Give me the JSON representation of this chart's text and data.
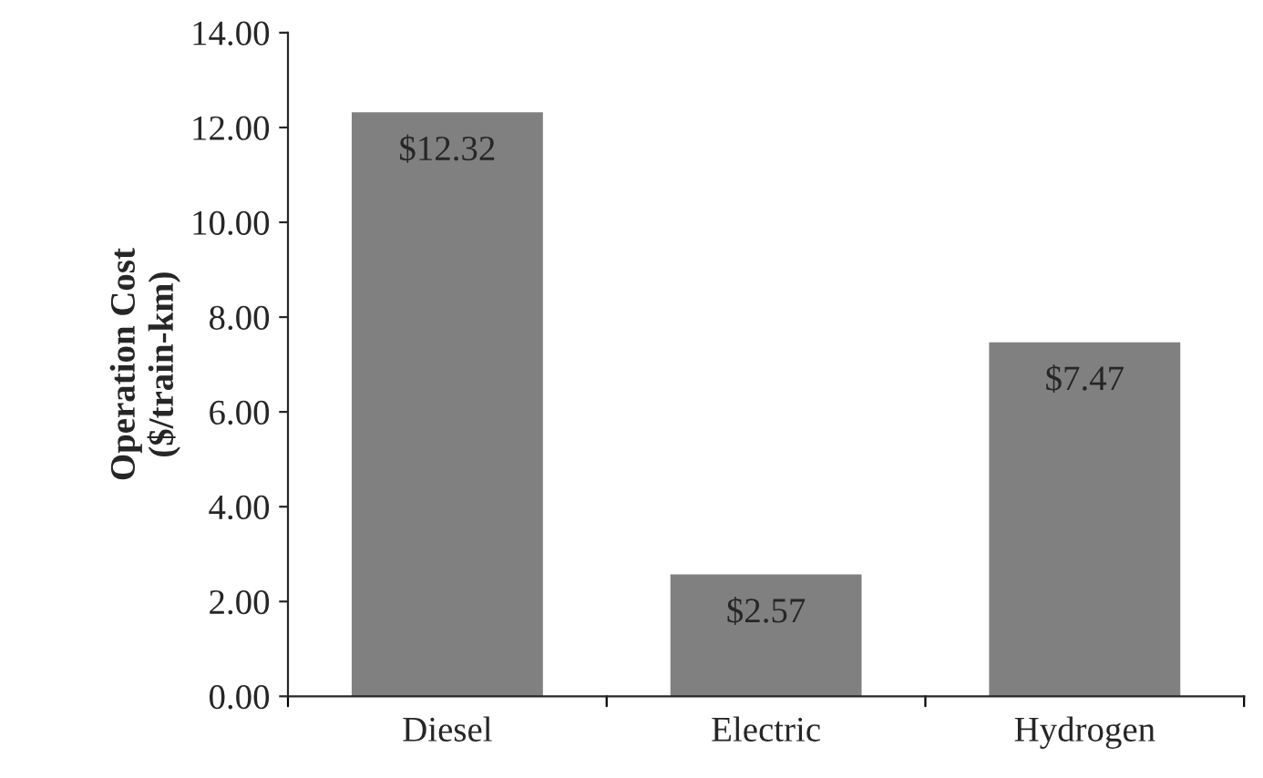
{
  "chart_data": {
    "type": "bar",
    "ylabel": "Operation Cost\n($/train-km)",
    "categories": [
      "Diesel",
      "Electric",
      "Hydrogen"
    ],
    "values": [
      12.32,
      2.57,
      7.47
    ],
    "color": "#808080",
    "value_labels": [
      "$12.32",
      "$2.57",
      "$7.47"
    ],
    "ylim": [
      0,
      14
    ],
    "yticks": [
      {
        "value": 0,
        "label": "0.00"
      },
      {
        "value": 2,
        "label": "2.00"
      },
      {
        "value": 4,
        "label": "4.00"
      },
      {
        "value": 6,
        "label": "6.00"
      },
      {
        "value": 8,
        "label": "8.00"
      },
      {
        "value": 10,
        "label": "10.00"
      },
      {
        "value": 12,
        "label": "12.00"
      },
      {
        "value": 14,
        "label": "14.00"
      }
    ],
    "grid": false,
    "legend": false
  }
}
